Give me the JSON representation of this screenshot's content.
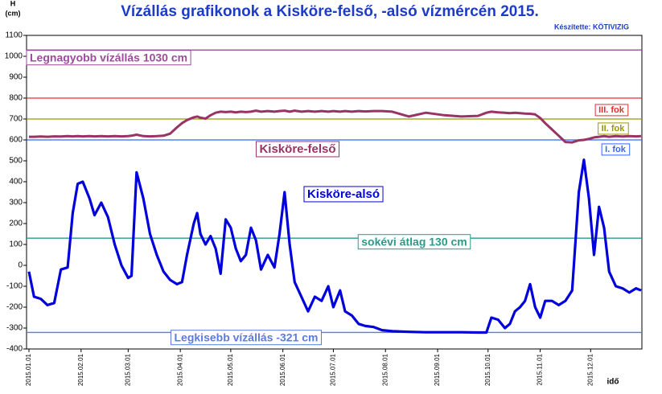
{
  "chart_data": {
    "type": "line",
    "title": "Vízállás grafikonok a Kisköre-felső, -alsó vízmércén 2015.",
    "subtitle": "Készítette: KÖTIVIZIG",
    "ylabel": "H",
    "yunit": "(cm)",
    "xlabel": "idő",
    "ylim": [
      -400,
      1100
    ],
    "yticks": [
      -400,
      -300,
      -200,
      -100,
      0,
      100,
      200,
      300,
      400,
      500,
      600,
      700,
      800,
      900,
      1000,
      1100
    ],
    "xlim": [
      "2015.01.01",
      "2015.12.31"
    ],
    "xticks": [
      "2015.01.01",
      "2015.02.01",
      "2015.03.01",
      "2015.04.01",
      "2015.05.01",
      "2015.06.01",
      "2015.07.01",
      "2015.08.01",
      "2015.09.01",
      "2015.10.01",
      "2015.11.01",
      "2015.12.01"
    ],
    "grid": false,
    "reference_lines": [
      {
        "value": 1030,
        "color": "#9b4c9b",
        "label": "Legnagyobb vízállás 1030 cm"
      },
      {
        "value": 800,
        "color": "#e03030",
        "label": "III. fok"
      },
      {
        "value": 700,
        "color": "#999900",
        "label": "II. fok"
      },
      {
        "value": 600,
        "color": "#3366ff",
        "label": "I. fok"
      },
      {
        "value": 130,
        "color": "#2a9a8a",
        "label": "sokévi átlag 130 cm"
      },
      {
        "value": -321,
        "color": "#5b7be0",
        "label": "Legkisebb vízállás -321 cm"
      }
    ],
    "x": [
      "2015.01.01",
      "2015.01.04",
      "2015.01.08",
      "2015.01.12",
      "2015.01.16",
      "2015.01.20",
      "2015.01.24",
      "2015.01.27",
      "2015.01.30",
      "2015.02.02",
      "2015.02.06",
      "2015.02.09",
      "2015.02.13",
      "2015.02.17",
      "2015.02.21",
      "2015.02.25",
      "2015.03.01",
      "2015.03.03",
      "2015.03.06",
      "2015.03.10",
      "2015.03.14",
      "2015.03.18",
      "2015.03.22",
      "2015.03.26",
      "2015.03.30",
      "2015.04.02",
      "2015.04.05",
      "2015.04.09",
      "2015.04.11",
      "2015.04.13",
      "2015.04.16",
      "2015.04.19",
      "2015.04.22",
      "2015.04.25",
      "2015.04.28",
      "2015.05.01",
      "2015.05.04",
      "2015.05.07",
      "2015.05.10",
      "2015.05.13",
      "2015.05.16",
      "2015.05.19",
      "2015.05.23",
      "2015.05.27",
      "2015.05.30",
      "2015.06.02",
      "2015.06.05",
      "2015.06.08",
      "2015.06.12",
      "2015.06.16",
      "2015.06.20",
      "2015.06.24",
      "2015.06.28",
      "2015.07.01",
      "2015.07.05",
      "2015.07.08",
      "2015.07.12",
      "2015.07.16",
      "2015.07.20",
      "2015.07.25",
      "2015.07.30",
      "2015.08.05",
      "2015.08.15",
      "2015.08.25",
      "2015.09.05",
      "2015.09.15",
      "2015.09.25",
      "2015.09.30",
      "2015.10.03",
      "2015.10.07",
      "2015.10.11",
      "2015.10.14",
      "2015.10.17",
      "2015.10.20",
      "2015.10.23",
      "2015.10.26",
      "2015.10.29",
      "2015.11.01",
      "2015.11.04",
      "2015.11.08",
      "2015.11.12",
      "2015.11.16",
      "2015.11.20",
      "2015.11.24",
      "2015.11.27",
      "2015.11.30",
      "2015.12.03",
      "2015.12.06",
      "2015.12.09",
      "2015.12.12",
      "2015.12.16",
      "2015.12.20",
      "2015.12.24",
      "2015.12.28",
      "2015.12.31"
    ],
    "series": [
      {
        "name": "Kisköre-felső",
        "color": "#993366",
        "values": [
          615,
          615,
          616,
          615,
          617,
          616,
          618,
          617,
          618,
          617,
          618,
          617,
          618,
          617,
          618,
          617,
          618,
          620,
          625,
          618,
          617,
          618,
          620,
          630,
          660,
          680,
          695,
          708,
          712,
          706,
          702,
          718,
          730,
          735,
          733,
          735,
          732,
          735,
          733,
          735,
          740,
          735,
          738,
          735,
          738,
          740,
          735,
          740,
          735,
          738,
          735,
          738,
          735,
          738,
          735,
          738,
          735,
          738,
          736,
          738,
          738,
          735,
          712,
          730,
          718,
          712,
          715,
          730,
          735,
          732,
          730,
          728,
          730,
          728,
          726,
          725,
          722,
          705,
          680,
          650,
          620,
          590,
          588,
          598,
          600,
          605,
          612,
          615,
          618,
          615,
          618,
          616,
          618,
          617,
          618
        ]
      },
      {
        "name": "Kisköre-alsó",
        "color": "#0000dd",
        "values": [
          -30,
          -150,
          -160,
          -190,
          -180,
          -20,
          -10,
          250,
          390,
          400,
          320,
          240,
          300,
          230,
          100,
          0,
          -60,
          -50,
          445,
          320,
          150,
          50,
          -30,
          -70,
          -90,
          -80,
          50,
          200,
          250,
          150,
          100,
          140,
          80,
          -40,
          220,
          180,
          80,
          20,
          50,
          180,
          120,
          -20,
          50,
          -10,
          150,
          350,
          100,
          -80,
          -150,
          -220,
          -150,
          -170,
          -100,
          -200,
          -120,
          -220,
          -240,
          -280,
          -290,
          -295,
          -310,
          -315,
          -318,
          -320,
          -320,
          -320,
          -321,
          -321,
          -250,
          -260,
          -300,
          -280,
          -220,
          -200,
          -170,
          -90,
          -200,
          -250,
          -170,
          -170,
          -190,
          -170,
          -120,
          350,
          505,
          320,
          50,
          280,
          180,
          -30,
          -100,
          -110,
          -130,
          -110,
          -120
        ]
      }
    ]
  }
}
